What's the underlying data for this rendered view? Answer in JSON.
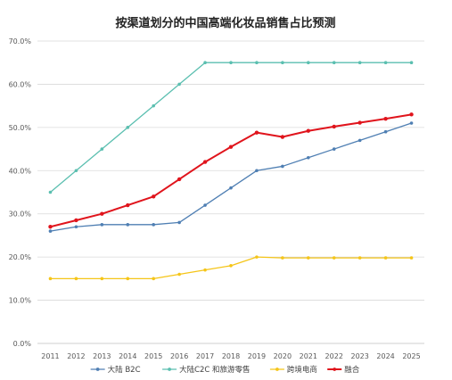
{
  "chart_data": {
    "type": "line",
    "title": "按渠道划分的中国高端化妆品销售占比预测",
    "xlabel": "",
    "ylabel": "",
    "categories": [
      "2011",
      "2012",
      "2013",
      "2014",
      "2015",
      "2016",
      "2017",
      "2018",
      "2019",
      "2020",
      "2021",
      "2022",
      "2023",
      "2024",
      "2025"
    ],
    "ylim": [
      0,
      70
    ],
    "yticks": [
      0,
      10,
      20,
      30,
      40,
      50,
      60,
      70
    ],
    "ytick_labels": [
      "0.0%",
      "10.0%",
      "20.0%",
      "30.0%",
      "40.0%",
      "50.0%",
      "60.0%",
      "70.0%"
    ],
    "grid": "horizontal",
    "legend_position": "bottom",
    "series": [
      {
        "name": "大陆 B2C",
        "color": "#4f7fb3",
        "width": 1.3,
        "values": [
          26,
          27,
          27.5,
          27.5,
          27.5,
          28,
          32,
          36,
          40,
          41,
          43,
          45,
          47,
          49,
          51
        ]
      },
      {
        "name": "大陆C2C 和旅游零售",
        "color": "#5bbfb0",
        "width": 1.3,
        "values": [
          35,
          40,
          45,
          50,
          55,
          60,
          65,
          65,
          65,
          65,
          65,
          65,
          65,
          65,
          65
        ]
      },
      {
        "name": "跨境电商",
        "color": "#f5c518",
        "width": 1.3,
        "values": [
          15,
          15,
          15,
          15,
          15,
          16,
          17,
          18,
          20,
          19.8,
          19.8,
          19.8,
          19.8,
          19.8,
          19.8
        ]
      },
      {
        "name": "融合",
        "color": "#e0141c",
        "width": 2,
        "values": [
          27,
          28.5,
          30,
          32,
          34,
          38,
          42,
          45.5,
          48.8,
          47.8,
          49.2,
          50.2,
          51.1,
          52,
          53
        ]
      }
    ]
  }
}
